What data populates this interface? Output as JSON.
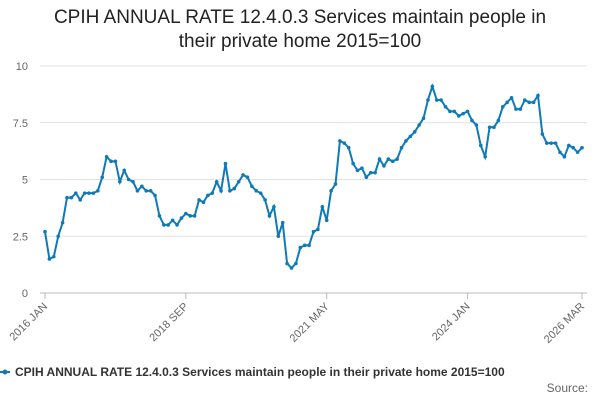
{
  "chart_data": {
    "type": "line",
    "title": "CPIH ANNUAL RATE 12.4.0.3 Services maintain people in their private home 2015=100",
    "categories": [
      "2016 JAN",
      null,
      null,
      null,
      null,
      null,
      null,
      null,
      null,
      null,
      null,
      null,
      null,
      null,
      null,
      null,
      null,
      null,
      null,
      null,
      null,
      null,
      null,
      null,
      null,
      null,
      null,
      null,
      null,
      null,
      null,
      null,
      "2018 SEP",
      null,
      null,
      null,
      null,
      null,
      null,
      null,
      null,
      null,
      null,
      null,
      null,
      null,
      null,
      null,
      null,
      null,
      null,
      null,
      null,
      null,
      null,
      null,
      null,
      null,
      null,
      null,
      null,
      null,
      null,
      null,
      "2021 MAY",
      null,
      null,
      null,
      null,
      null,
      null,
      null,
      null,
      null,
      null,
      null,
      null,
      null,
      null,
      null,
      null,
      null,
      null,
      null,
      null,
      null,
      null,
      null,
      null,
      null,
      null,
      null,
      null,
      null,
      null,
      null,
      "2024 JAN",
      null,
      null,
      null,
      null,
      null,
      null,
      null,
      null,
      null,
      null,
      null,
      null,
      null,
      null,
      null,
      null,
      null,
      null,
      null,
      null,
      null,
      null,
      null,
      null,
      null,
      "2026 MAR"
    ],
    "series": [
      {
        "name": "CPIH ANNUAL RATE 12.4.0.3 Services maintain people in their private home 2015=100",
        "color": "#0f7ab8",
        "values": [
          2.7,
          1.5,
          1.6,
          2.5,
          3.1,
          4.2,
          4.2,
          4.4,
          4.1,
          4.4,
          4.4,
          4.4,
          4.5,
          5.1,
          6.0,
          5.8,
          5.8,
          4.9,
          5.4,
          5.0,
          4.9,
          4.5,
          4.7,
          4.5,
          4.5,
          4.3,
          3.4,
          3.0,
          3.0,
          3.2,
          3.0,
          3.3,
          3.5,
          3.4,
          3.4,
          4.1,
          4.0,
          4.3,
          4.4,
          4.9,
          4.5,
          5.7,
          4.5,
          4.6,
          4.9,
          5.2,
          5.1,
          4.7,
          4.5,
          4.4,
          4.1,
          3.4,
          3.8,
          2.5,
          3.1,
          1.3,
          1.1,
          1.3,
          2.0,
          2.1,
          2.1,
          2.7,
          2.8,
          3.8,
          3.2,
          4.5,
          4.8,
          6.7,
          6.6,
          6.4,
          5.7,
          5.4,
          5.5,
          5.1,
          5.3,
          5.3,
          5.9,
          5.6,
          5.9,
          5.8,
          5.9,
          6.4,
          6.7,
          6.9,
          7.1,
          7.4,
          7.7,
          8.5,
          9.1,
          8.5,
          8.5,
          8.2,
          8.0,
          8.0,
          7.8,
          7.9,
          8.0,
          7.6,
          7.4,
          6.5,
          6.0,
          7.3,
          7.3,
          7.6,
          8.2,
          8.4,
          8.6,
          8.1,
          8.1,
          8.5,
          8.4,
          8.4,
          8.7,
          7.0,
          6.6,
          6.6,
          6.6,
          6.2,
          6.0,
          6.5,
          6.4,
          6.2,
          6.4
        ]
      }
    ],
    "ylim": [
      0,
      10
    ],
    "yticks": [
      0,
      2.5,
      5,
      7.5,
      10
    ],
    "grid": true,
    "legend": "bottom",
    "source": "Source:"
  }
}
